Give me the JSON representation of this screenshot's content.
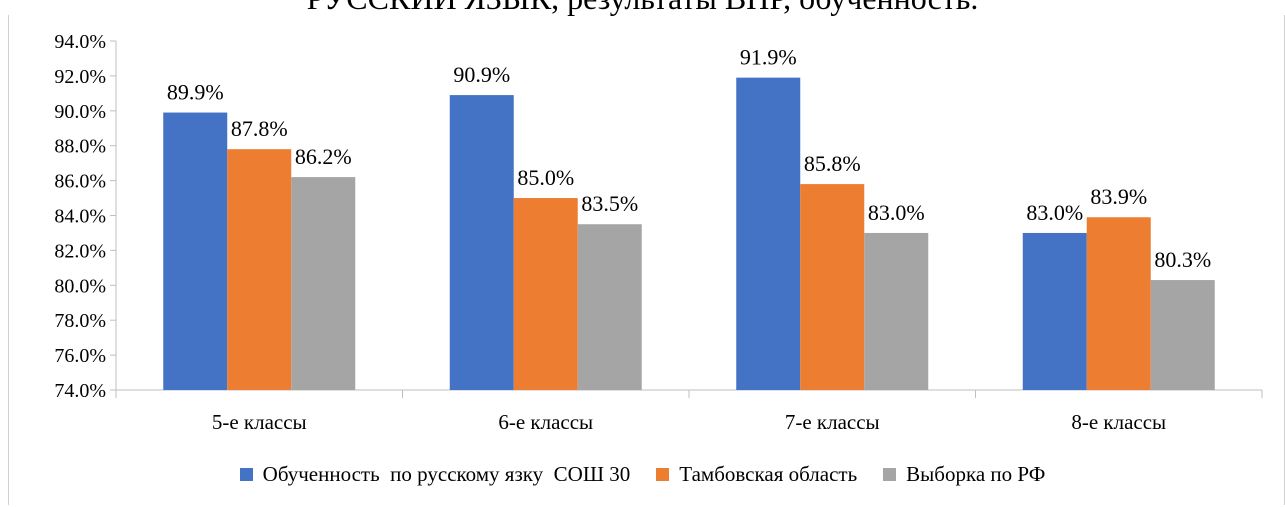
{
  "chart_data": {
    "type": "bar",
    "title": "РУССКИЙ ЯЗЫК, результаты ВПР, обученность.",
    "categories": [
      "5-е классы",
      "6-е классы",
      "7-е классы",
      "8-е классы"
    ],
    "series": [
      {
        "name": "Обученность  по русскому язку  СОШ 30",
        "color": "#4472C4",
        "values": [
          89.9,
          90.9,
          91.9,
          83.0
        ],
        "labels": [
          "89.9%",
          "90.9%",
          "91.9%",
          "83.0%"
        ]
      },
      {
        "name": "Тамбовская область",
        "color": "#ED7D31",
        "values": [
          87.8,
          85.0,
          85.8,
          83.9
        ],
        "labels": [
          "87.8%",
          "85.0%",
          "85.8%",
          "83.9%"
        ]
      },
      {
        "name": "Выборка по РФ",
        "color": "#A5A5A5",
        "values": [
          86.2,
          83.5,
          83.0,
          80.3
        ],
        "labels": [
          "86.2%",
          "83.5%",
          "83.0%",
          "80.3%"
        ]
      }
    ],
    "ylim": [
      74.0,
      94.0
    ],
    "yticks": [
      "74.0%",
      "76.0%",
      "78.0%",
      "80.0%",
      "82.0%",
      "84.0%",
      "86.0%",
      "88.0%",
      "90.0%",
      "92.0%",
      "94.0%"
    ],
    "grid": false,
    "legend": "bottom"
  }
}
